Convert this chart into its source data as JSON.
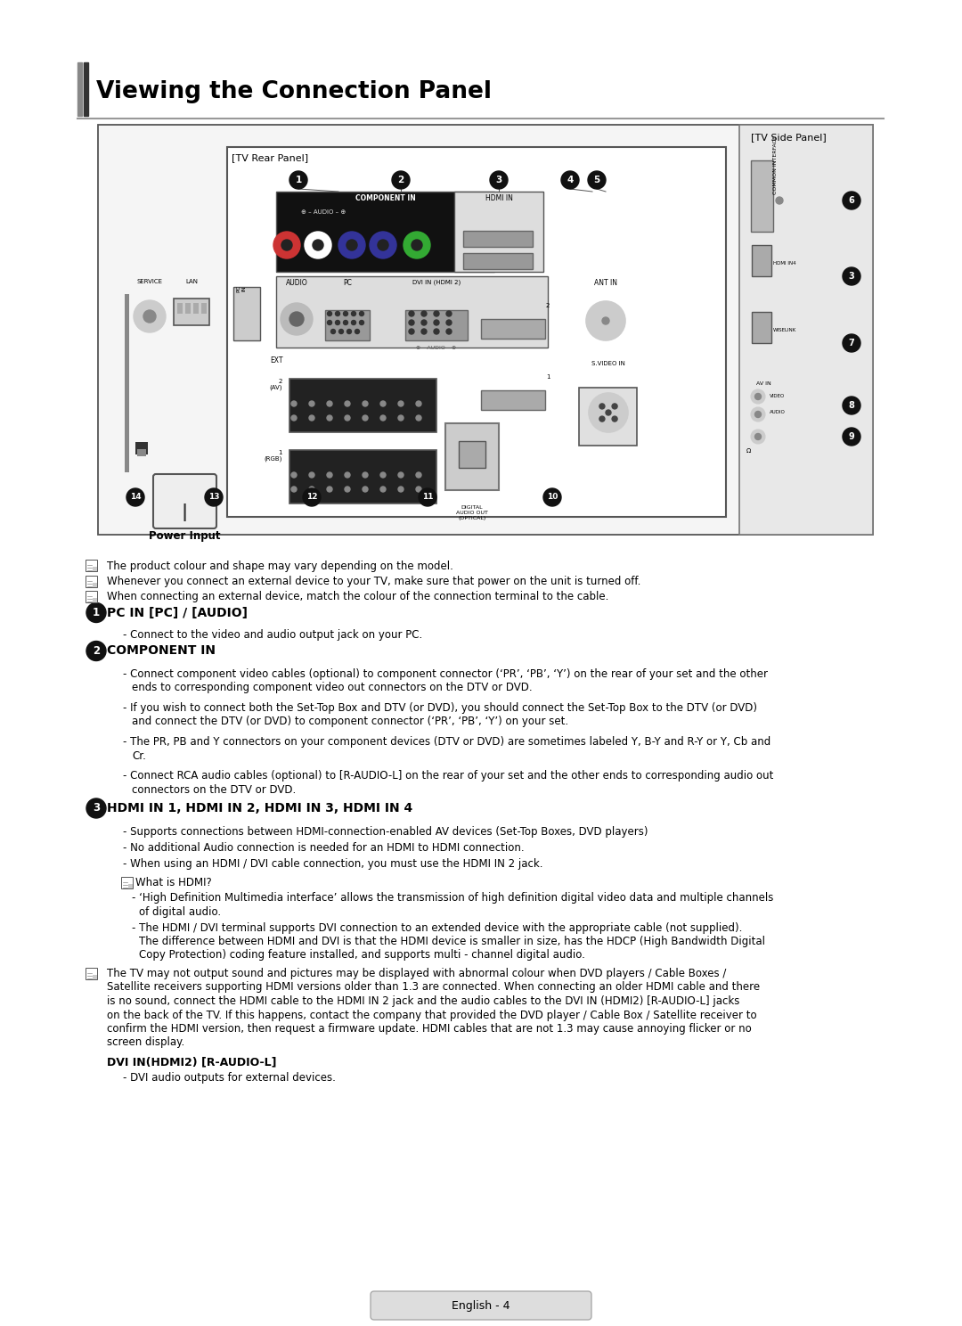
{
  "title": "Viewing the Connection Panel",
  "bg_color": "#ffffff",
  "notes": [
    "The product colour and shape may vary depending on the model.",
    "Whenever you connect an external device to your TV, make sure that power on the unit is turned off.",
    "When connecting an external device, match the colour of the connection terminal to the cable."
  ],
  "section1_title": "PC IN [PC] / [AUDIO]",
  "section1_body": "Connect to the video and audio output jack on your PC.",
  "section2_title": "COMPONENT IN",
  "section2_items": [
    [
      "Connect component video cables (optional) to component connector (‘PR’, ‘PB’, ‘Y’) on the rear of your set and the other",
      "ends to corresponding component video out connectors on the DTV or DVD."
    ],
    [
      "If you wish to connect both the Set-Top Box and DTV (or DVD), you should connect the Set-Top Box to the DTV (or DVD)",
      "and connect the DTV (or DVD) to component connector (‘PR’, ‘PB’, ‘Y’) on your set."
    ],
    [
      "The PR, PB and Y connectors on your component devices (DTV or DVD) are sometimes labeled Y, B-Y and R-Y or Y, Cb and",
      "Cr."
    ],
    [
      "Connect RCA audio cables (optional) to [R-AUDIO-L] on the rear of your set and the other ends to corresponding audio out",
      "connectors on the DTV or DVD."
    ]
  ],
  "section3_title": "HDMI IN 1, HDMI IN 2, HDMI IN 3, HDMI IN 4",
  "section3_items": [
    "Supports connections between HDMI-connection-enabled AV devices (Set-Top Boxes, DVD players)",
    "No additional Audio connection is needed for an HDMI to HDMI connection.",
    "When using an HDMI / DVI cable connection, you must use the HDMI IN 2 jack."
  ],
  "what_is_hdmi": "What is HDMI?",
  "hdmi_sub1a": "‘High Definition Multimedia interface’ allows the transmission of high definition digital video data and multiple channels",
  "hdmi_sub1b": "of digital audio.",
  "hdmi_sub2a": "The HDMI / DVI terminal supports DVI connection to an extended device with the appropriate cable (not supplied).",
  "hdmi_sub2b": "The difference between HDMI and DVI is that the HDMI device is smaller in size, has the HDCP (High Bandwidth Digital",
  "hdmi_sub2c": "Copy Protection) coding feature installed, and supports multi - channel digital audio.",
  "tv_note_lines": [
    "The TV may not output sound and pictures may be displayed with abnormal colour when DVD players / Cable Boxes /",
    "Satellite receivers supporting HDMI versions older than 1.3 are connected. When connecting an older HDMI cable and there",
    "is no sound, connect the HDMI cable to the HDMI IN 2 jack and the audio cables to the DVI IN (HDMI2) [R-AUDIO-L] jacks",
    "on the back of the TV. If this happens, contact the company that provided the DVD player / Cable Box / Satellite receiver to",
    "confirm the HDMI version, then request a firmware update. HDMI cables that are not 1.3 may cause annoying flicker or no",
    "screen display."
  ],
  "dvi_title": "DVI IN(HDMI2) [R-AUDIO-L]",
  "dvi_item": "DVI audio outputs for external devices.",
  "footer": "English - 4",
  "tv_side_panel": "[TV Side Panel]",
  "tv_rear_panel": "[TV Rear Panel]",
  "power_input": "Power Input"
}
